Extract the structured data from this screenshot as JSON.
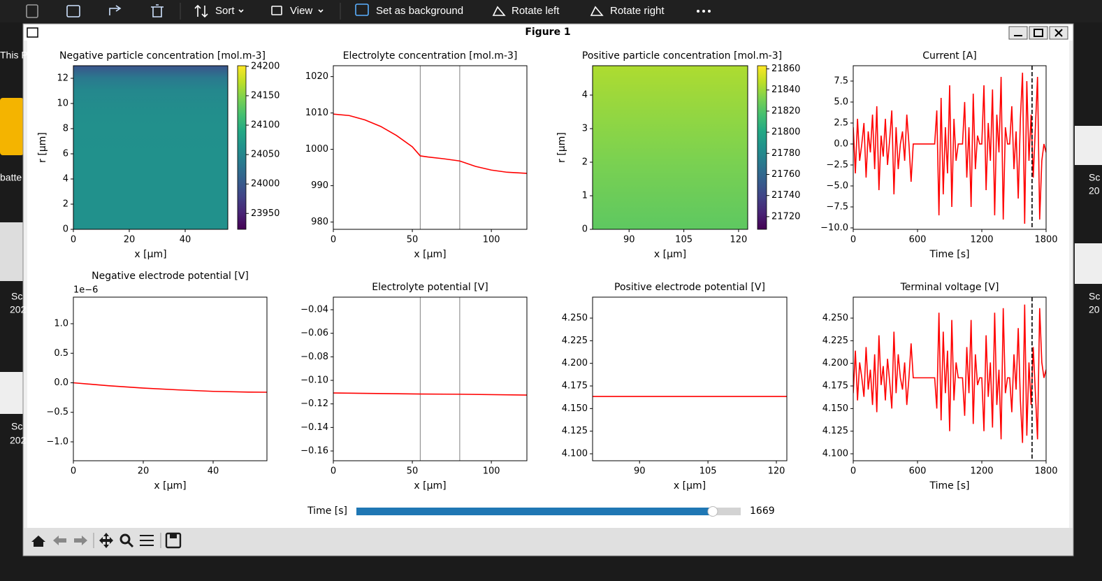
{
  "toolbar": {
    "items": [
      "Sort",
      "View",
      "Set as background",
      "Rotate left",
      "Rotate right"
    ]
  },
  "desktop": {
    "left": [
      "This P",
      "batte",
      "Sc",
      "202",
      "Sc",
      "202"
    ],
    "right": [
      "Sc",
      "20",
      "Sc",
      "20"
    ]
  },
  "window": {
    "title": "Figure 1"
  },
  "slider": {
    "label": "Time [s]",
    "value": 1669,
    "range": [
      0,
      1800
    ],
    "color": "#1f77b4"
  },
  "chart_data": [
    {
      "type": "heatmap",
      "title": "Negative particle concentration [mol.m-3]",
      "xlabel": "x [μm]",
      "ylabel": "r [μm]",
      "xlim": [
        0,
        55.25
      ],
      "ylim": [
        0,
        13
      ],
      "xticks": [
        0,
        20,
        40
      ],
      "yticks": [
        0,
        2,
        4,
        6,
        8,
        10,
        12
      ],
      "colormap": "viridis",
      "r": [
        0,
        6,
        9,
        11,
        12,
        13
      ],
      "values": [
        24062,
        24062,
        24060,
        24052,
        24035,
        23995
      ],
      "colorbar": {
        "lim": [
          23923,
          24201
        ],
        "ticks": [
          23950,
          24000,
          24050,
          24100,
          24150,
          24200
        ]
      }
    },
    {
      "type": "line",
      "title": "Electrolyte concentration [mol.m-3]",
      "xlabel": "x [μm]",
      "xlim": [
        0,
        122.5
      ],
      "ylim": [
        978,
        1023
      ],
      "xticks": [
        0,
        50,
        100
      ],
      "yticks": [
        980,
        990,
        1000,
        1010,
        1020
      ],
      "color": "#ff0000",
      "vlines": [
        55,
        80
      ],
      "vline_color": "#808080",
      "x": [
        0,
        10,
        20,
        30,
        40,
        50,
        55,
        60,
        70,
        80,
        90,
        100,
        110,
        122.5
      ],
      "values": [
        1009.7,
        1009.3,
        1008.1,
        1006.3,
        1003.8,
        1000.7,
        998.2,
        997.9,
        997.4,
        996.8,
        995.3,
        994.3,
        993.7,
        993.4
      ]
    },
    {
      "type": "heatmap",
      "title": "Positive particle concentration [mol.m-3]",
      "xlabel": "x [μm]",
      "ylabel": "r [μm]",
      "xlim": [
        80,
        122.5
      ],
      "ylim": [
        0,
        4.875
      ],
      "xticks": [
        90,
        105,
        120
      ],
      "yticks": [
        0,
        1,
        2,
        3,
        4
      ],
      "colormap": "viridis",
      "r": [
        0,
        1,
        2,
        3,
        4,
        4.875
      ],
      "values": [
        21824,
        21828,
        21832,
        21836,
        21840,
        21844
      ],
      "colorbar": {
        "lim": [
          21708,
          21863
        ],
        "ticks": [
          21720,
          21740,
          21760,
          21780,
          21800,
          21820,
          21840,
          21860
        ]
      }
    },
    {
      "type": "line",
      "title": "Current [A]",
      "xlabel": "Time [s]",
      "xlim": [
        0,
        1800
      ],
      "ylim": [
        -10.17,
        9.33
      ],
      "xticks": [
        0,
        600,
        1200,
        1800
      ],
      "yticks": [
        7.5,
        {
          "value": 5,
          "label": "5.0"
        },
        2.5,
        {
          "value": 0,
          "label": "0.0"
        },
        {
          "value": -2.5,
          "label": "−2.5"
        },
        {
          "value": -5,
          "label": "−5.0"
        },
        {
          "value": -7.5,
          "label": "−7.5"
        },
        {
          "value": -10,
          "label": "−10.0"
        }
      ],
      "color": "#ff0000",
      "time_marker": true,
      "x": [
        0,
        20,
        40,
        60,
        80,
        100,
        120,
        140,
        160,
        180,
        200,
        220,
        240,
        260,
        280,
        300,
        320,
        340,
        360,
        380,
        400,
        420,
        440,
        460,
        480,
        500,
        520,
        540,
        560,
        580,
        600,
        620,
        640,
        660,
        680,
        700,
        720,
        740,
        760,
        780,
        800,
        820,
        840,
        860,
        880,
        900,
        920,
        940,
        960,
        980,
        1000,
        1020,
        1040,
        1060,
        1080,
        1100,
        1120,
        1140,
        1160,
        1180,
        1200,
        1220,
        1240,
        1260,
        1280,
        1300,
        1320,
        1340,
        1360,
        1380,
        1400,
        1420,
        1440,
        1460,
        1480,
        1500,
        1520,
        1540,
        1560,
        1580,
        1600,
        1620,
        1640,
        1660,
        1680,
        1700,
        1720,
        1740,
        1760,
        1780,
        1800
      ],
      "values": [
        2.0,
        -3.5,
        3.0,
        -2.0,
        0.0,
        2.5,
        -4.0,
        1.5,
        -1.0,
        3.5,
        -3.0,
        4.5,
        -5.5,
        1.0,
        -1.5,
        3.0,
        -2.5,
        0.5,
        4.0,
        -6.0,
        2.0,
        -3.0,
        0.0,
        1.5,
        -2.0,
        3.5,
        0.0,
        -4.5,
        0.0,
        0.0,
        0.0,
        0.0,
        0.0,
        0.0,
        0.0,
        0.0,
        0.0,
        0.0,
        0.0,
        4.0,
        -8.5,
        5.5,
        -6.0,
        2.0,
        -3.5,
        7.0,
        -7.5,
        3.0,
        -2.0,
        0.0,
        0.0,
        0.0,
        5.0,
        -4.0,
        2.0,
        -7.5,
        6.0,
        -3.0,
        1.0,
        0.0,
        0.0,
        7.0,
        -5.5,
        2.5,
        -2.0,
        6.5,
        -8.5,
        3.5,
        -1.0,
        8.0,
        -9.0,
        2.0,
        0.0,
        0.0,
        4.5,
        -3.0,
        1.5,
        -6.5,
        3.0,
        8.5,
        -9.5,
        7.5,
        -2.0,
        3.5,
        -4.0,
        2.0,
        8.0,
        -9.0,
        -2.0,
        0.0,
        -1.0
      ]
    },
    {
      "type": "line",
      "title": "Negative electrode potential [V]",
      "offset_text": "1e−6",
      "xlabel": "x [μm]",
      "xlim": [
        0,
        55.4
      ],
      "ylim": [
        -1.32,
        1.45
      ],
      "xticks": [
        0,
        20,
        40
      ],
      "yticks": [
        {
          "value": 1,
          "label": "1.0"
        },
        0.5,
        {
          "value": 0,
          "label": "0.0"
        },
        {
          "value": -0.5,
          "label": "−0.5"
        },
        {
          "value": -1,
          "label": "−1.0"
        }
      ],
      "color": "#ff0000",
      "x": [
        0,
        10,
        20,
        30,
        40,
        50,
        55.4
      ],
      "values": [
        0.0,
        -0.05,
        -0.09,
        -0.12,
        -0.145,
        -0.158,
        -0.16
      ]
    },
    {
      "type": "line",
      "title": "Electrolyte potential [V]",
      "xlabel": "x [μm]",
      "xlim": [
        0,
        122.5
      ],
      "ylim": [
        -0.1683,
        -0.0293
      ],
      "xticks": [
        0,
        50,
        100
      ],
      "yticks": [
        {
          "value": -0.04,
          "label": "−0.04"
        },
        {
          "value": -0.06,
          "label": "−0.06"
        },
        {
          "value": -0.08,
          "label": "−0.08"
        },
        {
          "value": -0.1,
          "label": "−0.10"
        },
        {
          "value": -0.12,
          "label": "−0.12"
        },
        {
          "value": -0.14,
          "label": "−0.14"
        },
        {
          "value": -0.16,
          "label": "−0.16"
        }
      ],
      "color": "#ff0000",
      "vlines": [
        55,
        80
      ],
      "vline_color": "#808080",
      "x": [
        0,
        55,
        80,
        122.5
      ],
      "values": [
        -0.1107,
        -0.1116,
        -0.1118,
        -0.1125
      ]
    },
    {
      "type": "line",
      "title": "Positive electrode potential [V]",
      "xlabel": "x [μm]",
      "xlim": [
        79.7,
        122.3
      ],
      "ylim": [
        4.0923,
        4.2732
      ],
      "xticks": [
        90,
        105,
        120
      ],
      "yticks": [
        {
          "value": 4.25,
          "label": "4.250"
        },
        4.225,
        {
          "value": 4.2,
          "label": "4.200"
        },
        4.175,
        {
          "value": 4.15,
          "label": "4.150"
        },
        4.125,
        {
          "value": 4.1,
          "label": "4.100"
        }
      ],
      "color": "#ff0000",
      "x": [
        79.7,
        122.3
      ],
      "values": [
        4.1634,
        4.1634
      ]
    },
    {
      "type": "line",
      "title": "Terminal voltage [V]",
      "xlabel": "Time [s]",
      "xlim": [
        0,
        1800
      ],
      "ylim": [
        4.0923,
        4.2732
      ],
      "xticks": [
        0,
        600,
        1200,
        1800
      ],
      "yticks": [
        {
          "value": 4.25,
          "label": "4.250"
        },
        4.225,
        {
          "value": 4.2,
          "label": "4.200"
        },
        4.175,
        {
          "value": 4.15,
          "label": "4.150"
        },
        4.125,
        {
          "value": 4.1,
          "label": "4.100"
        }
      ],
      "color": "#ff0000",
      "time_marker": true,
      "x": [
        0,
        20,
        40,
        60,
        80,
        100,
        120,
        140,
        160,
        180,
        200,
        220,
        240,
        260,
        280,
        300,
        320,
        340,
        360,
        380,
        400,
        420,
        440,
        460,
        480,
        500,
        520,
        540,
        560,
        580,
        600,
        620,
        640,
        660,
        680,
        700,
        720,
        740,
        760,
        780,
        800,
        820,
        840,
        860,
        880,
        900,
        920,
        940,
        960,
        980,
        1000,
        1020,
        1040,
        1060,
        1080,
        1100,
        1120,
        1140,
        1160,
        1180,
        1200,
        1220,
        1240,
        1260,
        1280,
        1300,
        1320,
        1340,
        1360,
        1380,
        1400,
        1420,
        1440,
        1460,
        1480,
        1500,
        1520,
        1540,
        1560,
        1580,
        1600,
        1620,
        1640,
        1660,
        1680,
        1700,
        1720,
        1740,
        1760,
        1780,
        1800
      ],
      "values": [
        4.167,
        4.214,
        4.159,
        4.201,
        4.184,
        4.163,
        4.218,
        4.171,
        4.193,
        4.154,
        4.21,
        4.146,
        4.231,
        4.176,
        4.197,
        4.159,
        4.205,
        4.18,
        4.15,
        4.235,
        4.167,
        4.21,
        4.184,
        4.171,
        4.201,
        4.154,
        4.184,
        4.222,
        4.184,
        4.184,
        4.184,
        4.184,
        4.184,
        4.184,
        4.184,
        4.184,
        4.184,
        4.184,
        4.184,
        4.15,
        4.256,
        4.137,
        4.235,
        4.167,
        4.214,
        4.125,
        4.248,
        4.159,
        4.201,
        4.184,
        4.184,
        4.184,
        4.142,
        4.218,
        4.167,
        4.248,
        4.133,
        4.21,
        4.176,
        4.184,
        4.184,
        4.125,
        4.231,
        4.163,
        4.201,
        4.129,
        4.256,
        4.154,
        4.193,
        4.116,
        4.261,
        4.167,
        4.184,
        4.184,
        4.146,
        4.21,
        4.171,
        4.239,
        4.159,
        4.112,
        4.265,
        4.12,
        4.201,
        4.154,
        4.218,
        4.167,
        4.116,
        4.261,
        4.201,
        4.184,
        4.193
      ]
    }
  ]
}
